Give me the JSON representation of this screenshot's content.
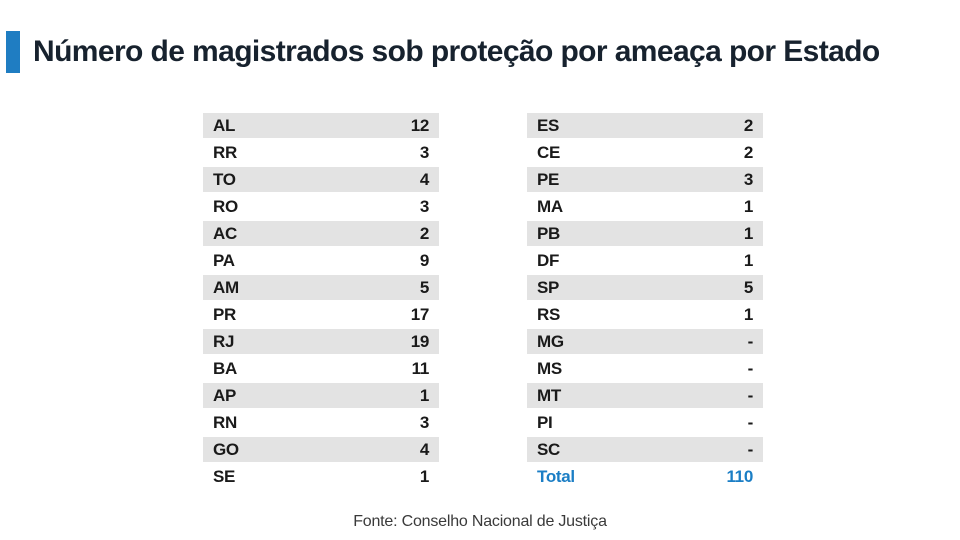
{
  "header": {
    "title": "Número de magistrados sob proteção por ameaça por Estado"
  },
  "footer": {
    "source": "Fonte: Conselho Nacional de Justiça"
  },
  "colors": {
    "accent_blue": "#1f7dc2",
    "total_blue": "#1b7ec5",
    "title_dark": "#17222e",
    "stripe_gray": "#e3e3e3",
    "row_text": "#1a1a1a"
  },
  "chart_data": {
    "type": "table",
    "title": "Número de magistrados sob proteção por ameaça por Estado",
    "source": "Fonte: Conselho Nacional de Justiça",
    "value_meaning": "magistrados sob proteção por ameaça",
    "columns": [
      {
        "rows": [
          {
            "label": "AL",
            "value": "12"
          },
          {
            "label": "RR",
            "value": "3"
          },
          {
            "label": "TO",
            "value": "4"
          },
          {
            "label": "RO",
            "value": "3"
          },
          {
            "label": "AC",
            "value": "2"
          },
          {
            "label": "PA",
            "value": "9"
          },
          {
            "label": "AM",
            "value": "5"
          },
          {
            "label": "PR",
            "value": "17"
          },
          {
            "label": "RJ",
            "value": "19"
          },
          {
            "label": "BA",
            "value": "11"
          },
          {
            "label": "AP",
            "value": "1"
          },
          {
            "label": "RN",
            "value": "3"
          },
          {
            "label": "GO",
            "value": "4"
          },
          {
            "label": "SE",
            "value": "1"
          }
        ]
      },
      {
        "rows": [
          {
            "label": "ES",
            "value": "2"
          },
          {
            "label": "CE",
            "value": "2"
          },
          {
            "label": "PE",
            "value": "3"
          },
          {
            "label": "MA",
            "value": "1"
          },
          {
            "label": "PB",
            "value": "1"
          },
          {
            "label": "DF",
            "value": "1"
          },
          {
            "label": "SP",
            "value": "5"
          },
          {
            "label": "RS",
            "value": "1"
          },
          {
            "label": "MG",
            "value": "-"
          },
          {
            "label": "MS",
            "value": "-"
          },
          {
            "label": "MT",
            "value": "-"
          },
          {
            "label": "PI",
            "value": "-"
          },
          {
            "label": "SC",
            "value": "-"
          }
        ],
        "total_row": {
          "label": "Total",
          "value": "110"
        }
      }
    ]
  }
}
